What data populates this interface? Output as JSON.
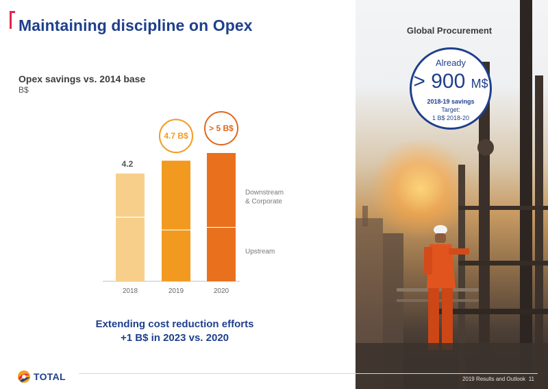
{
  "header": {
    "title": "Maintaining discipline on Opex"
  },
  "chart_data": {
    "type": "bar",
    "title": "Opex savings vs. 2014 base",
    "unit": "B$",
    "categories": [
      "2018",
      "2019",
      "2020"
    ],
    "series": [
      {
        "name": "Upstream",
        "values": [
          2.5,
          2.0,
          2.1
        ]
      },
      {
        "name": "Downstream & Corporate",
        "values": [
          1.7,
          2.7,
          2.9
        ]
      }
    ],
    "totals": [
      4.2,
      4.7,
      5.0
    ],
    "data_labels": [
      "4.2",
      "4.7 B$",
      "> 5 B$"
    ],
    "legend": [
      "Upstream",
      "Downstream & Corporate"
    ],
    "ylim": [
      0,
      5.5
    ],
    "colors": {
      "2018": "#f8cf8a",
      "2019": "#f29a1f",
      "2020": "#e9701c",
      "label_2019": "#f29a1f",
      "label_2020": "#e0661c",
      "label_2018": "#555555"
    }
  },
  "bottom_text": {
    "line1": "Extending cost reduction efforts",
    "line2": "+1 B$ in 2023 vs. 2020"
  },
  "sidebar": {
    "label": "Global Procurement",
    "badge": {
      "line1": "Already",
      "amount": "> 900",
      "unit": "M$",
      "line3": "2018-19 savings",
      "line4": "Target:",
      "line5": "1 B$ 2018-20"
    }
  },
  "footer": {
    "logo_text": "TOTAL",
    "doc_title": "2019 Results and Outlook",
    "page": "11"
  },
  "colors": {
    "title_blue": "#1e3f8c",
    "accent_red": "#e2244a"
  }
}
